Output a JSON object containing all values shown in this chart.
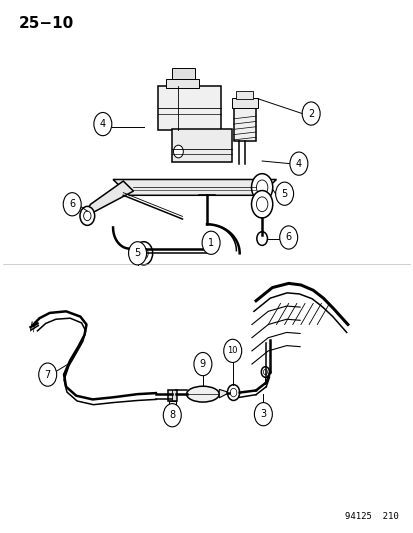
{
  "title": "25−10",
  "watermark": "94125  210",
  "bg_color": "#ffffff",
  "fg_color": "#000000",
  "fig_width": 4.14,
  "fig_height": 5.33,
  "dpi": 100
}
